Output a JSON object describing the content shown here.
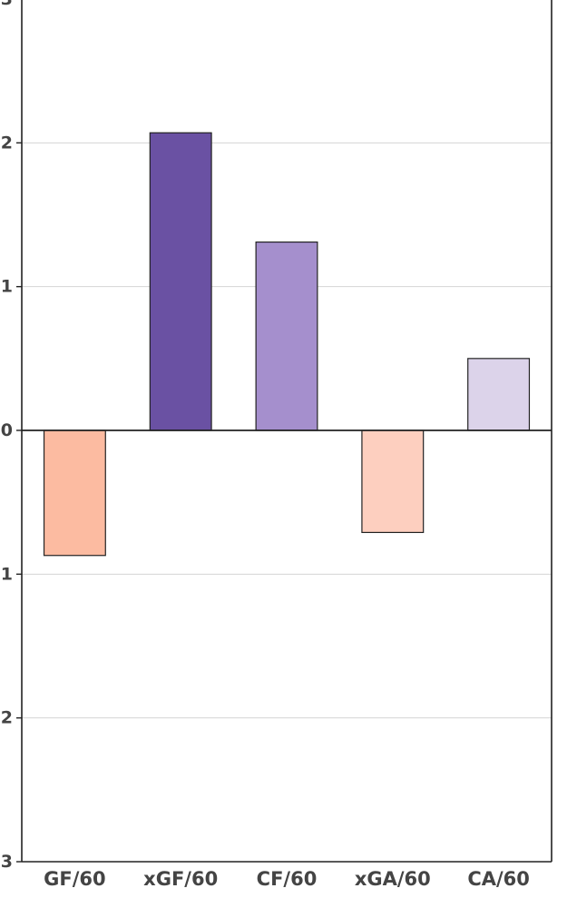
{
  "chart_data": {
    "type": "bar",
    "title": "",
    "xlabel": "",
    "ylabel": "",
    "ylim": [
      -3,
      3
    ],
    "y_ticks": [
      {
        "value": 3,
        "label": "3"
      },
      {
        "value": 2,
        "label": "2"
      },
      {
        "value": 1,
        "label": "1"
      },
      {
        "value": 0,
        "label": "0"
      },
      {
        "value": -1,
        "label": "1"
      },
      {
        "value": -2,
        "label": "2"
      },
      {
        "value": -3,
        "label": "3"
      }
    ],
    "grid": true,
    "categories": [
      "GF/60",
      "xGF/60",
      "CF/60",
      "xGA/60",
      "CA/60"
    ],
    "values": [
      -0.87,
      2.07,
      1.31,
      -0.71,
      0.5
    ],
    "colors": [
      "#fcbba1",
      "#6a51a3",
      "#a58fcd",
      "#fdcfbf",
      "#dcd3ea"
    ]
  }
}
